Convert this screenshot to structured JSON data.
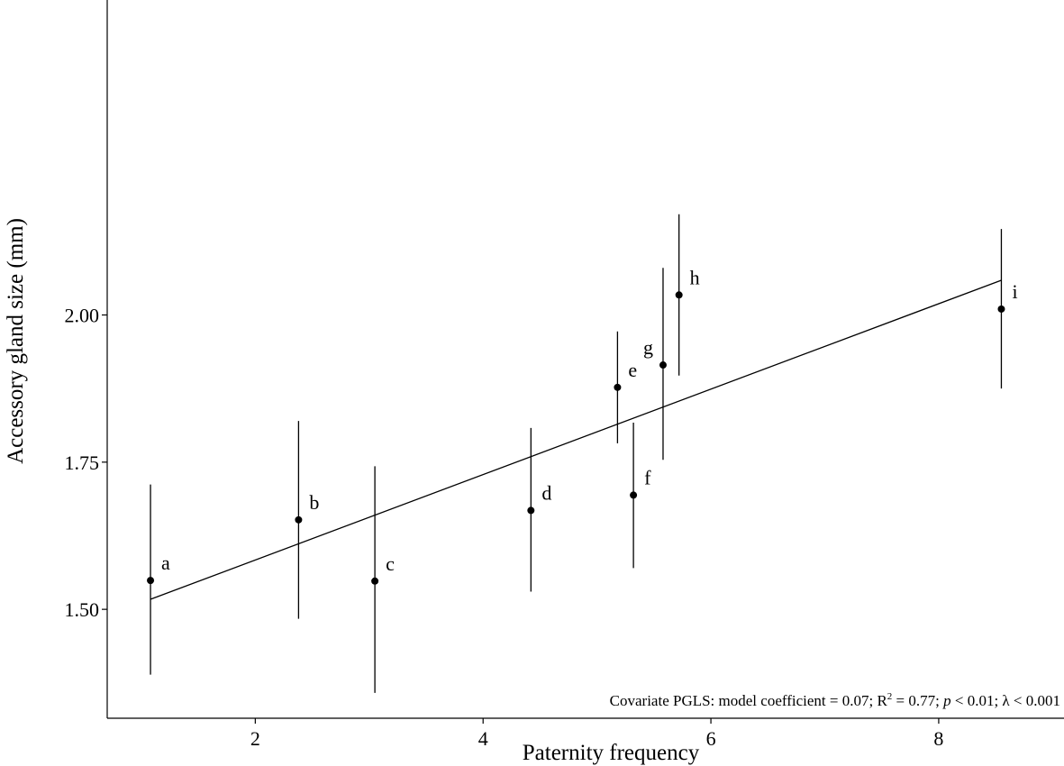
{
  "chart_data": {
    "type": "scatter",
    "xlabel": "Paternity frequency",
    "ylabel": "Accessory gland size (mm)",
    "xlim": [
      0.7,
      9.1
    ],
    "ylim": [
      1.315,
      2.535
    ],
    "xticks": [
      2,
      4,
      6,
      8
    ],
    "xtick_labels": [
      "2",
      "4",
      "6",
      "8"
    ],
    "yticks": [
      1.5,
      1.75,
      2.0
    ],
    "ytick_labels": [
      "1.50",
      "1.75",
      "2.00"
    ],
    "grid": false,
    "points": [
      {
        "label": "a",
        "x": 1.08,
        "y": 1.549,
        "ylo": 1.389,
        "yhi": 1.712
      },
      {
        "label": "b",
        "x": 2.38,
        "y": 1.652,
        "ylo": 1.484,
        "yhi": 1.82
      },
      {
        "label": "c",
        "x": 3.05,
        "y": 1.548,
        "ylo": 1.358,
        "yhi": 1.743
      },
      {
        "label": "d",
        "x": 4.42,
        "y": 1.668,
        "ylo": 1.53,
        "yhi": 1.808
      },
      {
        "label": "e",
        "x": 5.18,
        "y": 1.877,
        "ylo": 1.782,
        "yhi": 1.972
      },
      {
        "label": "f",
        "x": 5.32,
        "y": 1.694,
        "ylo": 1.57,
        "yhi": 1.817
      },
      {
        "label": "g",
        "x": 5.58,
        "y": 1.915,
        "ylo": 1.754,
        "yhi": 2.08
      },
      {
        "label": "h",
        "x": 5.72,
        "y": 2.034,
        "ylo": 1.897,
        "yhi": 2.171
      },
      {
        "label": "i",
        "x": 8.55,
        "y": 2.01,
        "ylo": 1.875,
        "yhi": 2.146
      }
    ],
    "fit_line": {
      "x": [
        1.08,
        8.55
      ],
      "y": [
        1.517,
        2.059
      ]
    },
    "annotation": {
      "prefix": "Covariate PGLS: model coefficient = 0.07;  R",
      "sup": "2",
      "r2_value": " = 0.77; ",
      "p_symbol": "p",
      "p_value": " < 0.01; λ < 0.001"
    }
  }
}
